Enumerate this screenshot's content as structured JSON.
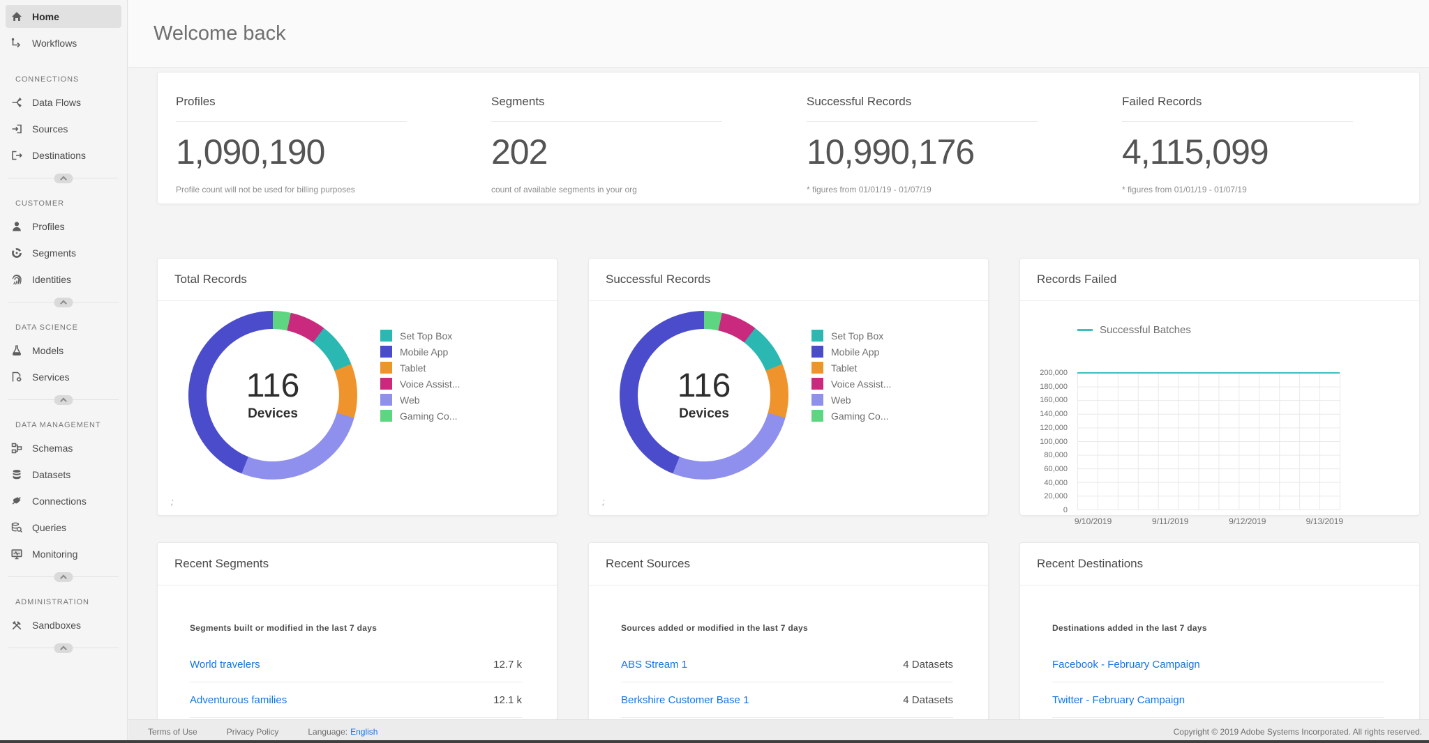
{
  "header": {
    "title": "Welcome back"
  },
  "sidebar": {
    "top_items": [
      {
        "label": "Home",
        "icon": "home",
        "selected": true
      },
      {
        "label": "Workflows",
        "icon": "workflows",
        "selected": false
      }
    ],
    "sections": [
      {
        "title": "CONNECTIONS",
        "items": [
          {
            "label": "Data Flows",
            "icon": "data-flows"
          },
          {
            "label": "Sources",
            "icon": "sources"
          },
          {
            "label": "Destinations",
            "icon": "destinations"
          }
        ]
      },
      {
        "title": "CUSTOMER",
        "items": [
          {
            "label": "Profiles",
            "icon": "profiles"
          },
          {
            "label": "Segments",
            "icon": "segments"
          },
          {
            "label": "Identities",
            "icon": "identities"
          }
        ]
      },
      {
        "title": "DATA SCIENCE",
        "items": [
          {
            "label": "Models",
            "icon": "models"
          },
          {
            "label": "Services",
            "icon": "services"
          }
        ]
      },
      {
        "title": "DATA MANAGEMENT",
        "items": [
          {
            "label": "Schemas",
            "icon": "schemas"
          },
          {
            "label": "Datasets",
            "icon": "datasets"
          },
          {
            "label": "Connections",
            "icon": "connections"
          },
          {
            "label": "Queries",
            "icon": "queries"
          },
          {
            "label": "Monitoring",
            "icon": "monitoring"
          }
        ]
      },
      {
        "title": "ADMINISTRATION",
        "items": [
          {
            "label": "Sandboxes",
            "icon": "sandboxes"
          }
        ]
      }
    ]
  },
  "stats": [
    {
      "title": "Profiles",
      "value": "1,090,190",
      "caption": "Profile count will not be used for billing purposes"
    },
    {
      "title": "Segments",
      "value": "202",
      "caption": "count of available segments in your org"
    },
    {
      "title": "Successful Records",
      "value": "10,990,176",
      "caption": "* figures from 01/01/19 - 01/07/19"
    },
    {
      "title": "Failed Records",
      "value": "4,115,099",
      "caption": "* figures from 01/01/19 - 01/07/19"
    }
  ],
  "chart_data": [
    {
      "type": "donut",
      "card_title": "Total Records",
      "center_value": "116",
      "center_label": "Devices",
      "total": 116,
      "segments": [
        {
          "label": "Set Top Box",
          "value": 10,
          "color": "#2bb8b3"
        },
        {
          "label": "Mobile App",
          "value": 51,
          "color": "#4a4ccb"
        },
        {
          "label": "Tablet",
          "value": 12,
          "color": "#ef942c"
        },
        {
          "label": "Voice Assist...",
          "value": 8,
          "color": "#c92a7d"
        },
        {
          "label": "Web",
          "value": 31,
          "color": "#8f90ee"
        },
        {
          "label": "Gaming Co...",
          "value": 4,
          "color": "#5ed581"
        }
      ],
      "draw_order": [
        "Gaming Co...",
        "Voice Assist...",
        "Set Top Box",
        "Tablet",
        "Web",
        "Mobile App"
      ],
      "footnote": ";"
    },
    {
      "type": "donut",
      "card_title": "Successful Records",
      "center_value": "116",
      "center_label": "Devices",
      "total": 116,
      "segments": [
        {
          "label": "Set Top Box",
          "value": 10,
          "color": "#2bb8b3"
        },
        {
          "label": "Mobile App",
          "value": 51,
          "color": "#4a4ccb"
        },
        {
          "label": "Tablet",
          "value": 12,
          "color": "#ef942c"
        },
        {
          "label": "Voice Assist...",
          "value": 8,
          "color": "#c92a7d"
        },
        {
          "label": "Web",
          "value": 31,
          "color": "#8f90ee"
        },
        {
          "label": "Gaming Co...",
          "value": 4,
          "color": "#5ed581"
        }
      ],
      "draw_order": [
        "Gaming Co...",
        "Voice Assist...",
        "Set Top Box",
        "Tablet",
        "Web",
        "Mobile App"
      ],
      "footnote": ";"
    },
    {
      "type": "line",
      "card_title": "Records Failed",
      "legend": "Successful Batches",
      "line_color": "#3ebfbf",
      "x": [
        "9/10/2019",
        "9/11/2019",
        "9/12/2019",
        "9/13/2019"
      ],
      "series": [
        {
          "name": "Successful Batches",
          "values": [
            200000,
            200000,
            200000,
            200000
          ]
        }
      ],
      "ylim": [
        0,
        200000
      ],
      "yticks": [
        "200,000",
        "180,000",
        "160,000",
        "140,000",
        "120,000",
        "100,000",
        "80,000",
        "60,000",
        "40,000",
        "20,000",
        "0"
      ],
      "grid": true,
      "legend_position": "top"
    }
  ],
  "recent": [
    {
      "title": "Recent Segments",
      "subtitle": "Segments built or modified in the last 7 days",
      "rows": [
        {
          "name": "World travelers",
          "value": "12.7 k"
        },
        {
          "name": "Adventurous families",
          "value": "12.1 k"
        }
      ]
    },
    {
      "title": "Recent Sources",
      "subtitle": "Sources added or modified in the last 7 days",
      "rows": [
        {
          "name": "ABS Stream 1",
          "value": "4 Datasets"
        },
        {
          "name": "Berkshire Customer Base 1",
          "value": "4 Datasets"
        }
      ]
    },
    {
      "title": "Recent Destinations",
      "subtitle": "Destinations added in the last 7 days",
      "rows": [
        {
          "name": "Facebook - February Campaign",
          "value": ""
        },
        {
          "name": "Twitter - February Campaign",
          "value": ""
        }
      ]
    }
  ],
  "footer": {
    "links": [
      "Terms of Use",
      "Privacy Policy"
    ],
    "language_label": "Language:",
    "language_value": "English",
    "copyright": "Copyright  ©  2019 Adobe Systems Incorporated.  All rights reserved."
  },
  "colors": {
    "accent_blue": "#1473e6",
    "line_teal": "#3ebfbf",
    "page_bg": "#f4f4f4",
    "card_bg": "#ffffff"
  }
}
